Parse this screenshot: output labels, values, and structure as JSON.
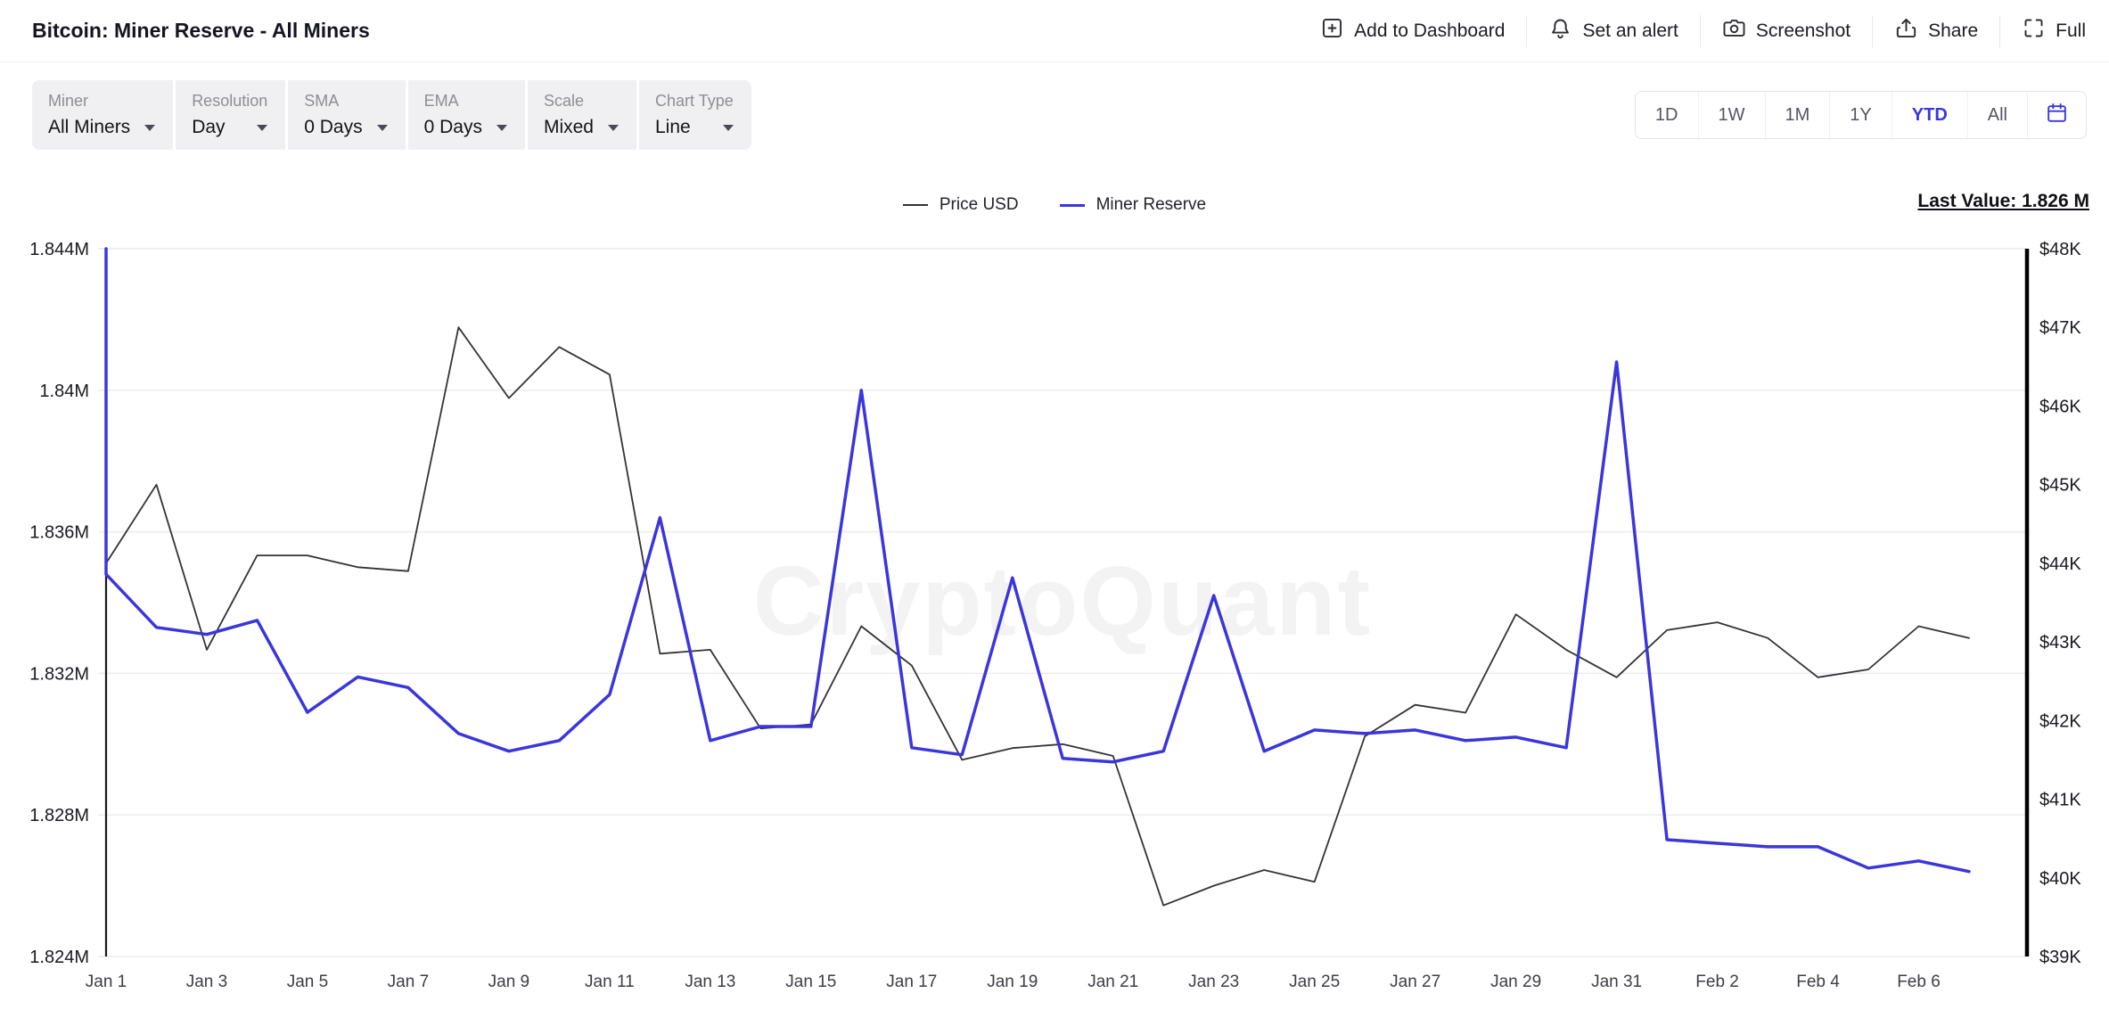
{
  "header": {
    "title": "Bitcoin: Miner Reserve - All Miners",
    "actions": [
      {
        "label": "Add to Dashboard",
        "icon": "add-to-dashboard-icon"
      },
      {
        "label": "Set an alert",
        "icon": "bell-icon"
      },
      {
        "label": "Screenshot",
        "icon": "camera-icon"
      },
      {
        "label": "Share",
        "icon": "share-icon"
      },
      {
        "label": "Full",
        "icon": "fullscreen-icon"
      }
    ]
  },
  "toolbar": {
    "controls": [
      {
        "label": "Miner",
        "value": "All Miners"
      },
      {
        "label": "Resolution",
        "value": "Day"
      },
      {
        "label": "SMA",
        "value": "0 Days"
      },
      {
        "label": "EMA",
        "value": "0 Days"
      },
      {
        "label": "Scale",
        "value": "Mixed"
      },
      {
        "label": "Chart Type",
        "value": "Line"
      }
    ],
    "ranges": [
      "1D",
      "1W",
      "1M",
      "1Y",
      "YTD",
      "All"
    ],
    "active_range": "YTD"
  },
  "legend": [
    {
      "label": "Price USD",
      "color": "#333338",
      "weight": 2
    },
    {
      "label": "Miner Reserve",
      "color": "#3A36DB",
      "weight": 3
    }
  ],
  "last_value_label": "Last Value: 1.826 M",
  "watermark": "CryptoQuant",
  "accent_color": "#3A36DB",
  "chart_data": {
    "type": "line",
    "x": [
      "Jan 1",
      "Jan 2",
      "Jan 3",
      "Jan 4",
      "Jan 5",
      "Jan 6",
      "Jan 7",
      "Jan 8",
      "Jan 9",
      "Jan 10",
      "Jan 11",
      "Jan 12",
      "Jan 13",
      "Jan 14",
      "Jan 15",
      "Jan 16",
      "Jan 17",
      "Jan 18",
      "Jan 19",
      "Jan 20",
      "Jan 21",
      "Jan 22",
      "Jan 23",
      "Jan 24",
      "Jan 25",
      "Jan 26",
      "Jan 27",
      "Jan 28",
      "Jan 29",
      "Jan 30",
      "Jan 31",
      "Feb 1",
      "Feb 2",
      "Feb 3",
      "Feb 4",
      "Feb 5",
      "Feb 6",
      "Feb 7"
    ],
    "x_tick_every": 2,
    "series": [
      {
        "name": "Price USD",
        "axis": "right",
        "unit": "$K",
        "color": "#333338",
        "width": 1.8,
        "values": [
          44.0,
          45.0,
          42.9,
          44.1,
          44.1,
          43.95,
          43.9,
          47.0,
          46.1,
          46.75,
          46.4,
          42.85,
          42.9,
          41.9,
          41.95,
          43.2,
          42.7,
          41.5,
          41.65,
          41.7,
          41.55,
          39.65,
          39.9,
          40.1,
          39.95,
          41.8,
          42.2,
          42.1,
          43.35,
          42.9,
          42.55,
          43.15,
          43.25,
          43.05,
          42.55,
          42.65,
          43.2,
          43.05
        ]
      },
      {
        "name": "Miner Reserve",
        "axis": "left",
        "unit": "M BTC",
        "color": "#3A36DB",
        "width": 3.5,
        "initial_drop_from": 1.844,
        "values": [
          1.8348,
          1.8333,
          1.8331,
          1.8335,
          1.8309,
          1.8319,
          1.8316,
          1.8303,
          1.8298,
          1.8301,
          1.8314,
          1.8364,
          1.8301,
          1.8305,
          1.8305,
          1.84,
          1.8299,
          1.8297,
          1.8347,
          1.8296,
          1.8295,
          1.8298,
          1.8342,
          1.8298,
          1.8304,
          1.8303,
          1.8304,
          1.8301,
          1.8302,
          1.8299,
          1.8408,
          1.8273,
          1.8272,
          1.8271,
          1.8271,
          1.8265,
          1.8267,
          1.8264
        ]
      }
    ],
    "left_axis": {
      "ticks": [
        "1.844M",
        "1.84M",
        "1.836M",
        "1.832M",
        "1.828M",
        "1.824M"
      ],
      "min": 1.824,
      "max": 1.844
    },
    "right_axis": {
      "ticks": [
        "$48K",
        "$47K",
        "$46K",
        "$45K",
        "$44K",
        "$43K",
        "$42K",
        "$41K",
        "$40K",
        "$39K"
      ],
      "min": 39,
      "max": 48
    },
    "title": "Bitcoin: Miner Reserve - All Miners",
    "last_value": "1.826 M"
  }
}
